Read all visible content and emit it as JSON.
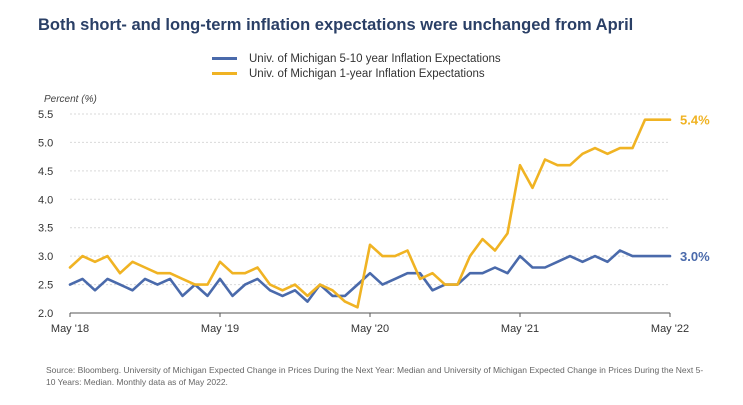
{
  "title": "Both short- and long-term inflation expectations were unchanged from April",
  "source": "Source: Bloomberg. University of Michigan Expected Change in Prices During the Next Year: Median and University of Michigan Expected Change in Prices During the Next 5-10 Years: Median. Monthly data as of May 2022.",
  "chart_data": {
    "type": "line",
    "title": "Both short- and long-term inflation expectations were unchanged from April",
    "ylabel": "Percent (%)",
    "xlabel": "",
    "ylim": [
      2.0,
      5.5
    ],
    "yticks": [
      "5.5",
      "5.0",
      "4.5",
      "4.0",
      "3.5",
      "3.0",
      "2.5",
      "2.0"
    ],
    "ytick_values": [
      5.5,
      5.0,
      4.5,
      4.0,
      3.5,
      3.0,
      2.5,
      2.0
    ],
    "xticks": [
      {
        "label": "May '18",
        "index": 0
      },
      {
        "label": "May '19",
        "index": 12
      },
      {
        "label": "May '20",
        "index": 24
      },
      {
        "label": "May '21",
        "index": 36
      },
      {
        "label": "May '22",
        "index": 48
      }
    ],
    "grid": true,
    "legend": "top-center",
    "series": [
      {
        "name": "Univ. of Michigan 5-10 year Inflation Expectations",
        "color": "#4a6aab",
        "end_label": "3.0%",
        "values": [
          2.5,
          2.6,
          2.4,
          2.6,
          2.5,
          2.4,
          2.6,
          2.5,
          2.6,
          2.3,
          2.5,
          2.3,
          2.6,
          2.3,
          2.5,
          2.6,
          2.4,
          2.3,
          2.4,
          2.2,
          2.5,
          2.3,
          2.3,
          2.5,
          2.7,
          2.5,
          2.6,
          2.7,
          2.7,
          2.4,
          2.5,
          2.5,
          2.7,
          2.7,
          2.8,
          2.7,
          3.0,
          2.8,
          2.8,
          2.9,
          3.0,
          2.9,
          3.0,
          2.9,
          3.1,
          3.0,
          3.0,
          3.0,
          3.0
        ]
      },
      {
        "name": "Univ. of Michigan 1-year Inflation Expectations",
        "color": "#f0b323",
        "end_label": "5.4%",
        "values": [
          2.8,
          3.0,
          2.9,
          3.0,
          2.7,
          2.9,
          2.8,
          2.7,
          2.7,
          2.6,
          2.5,
          2.5,
          2.9,
          2.7,
          2.7,
          2.8,
          2.5,
          2.4,
          2.5,
          2.3,
          2.5,
          2.4,
          2.2,
          2.1,
          3.2,
          3.0,
          3.0,
          3.1,
          2.6,
          2.7,
          2.5,
          2.5,
          3.0,
          3.3,
          3.1,
          3.4,
          4.6,
          4.2,
          4.7,
          4.6,
          4.6,
          4.8,
          4.9,
          4.8,
          4.9,
          4.9,
          5.4,
          5.4,
          5.4
        ]
      }
    ]
  }
}
